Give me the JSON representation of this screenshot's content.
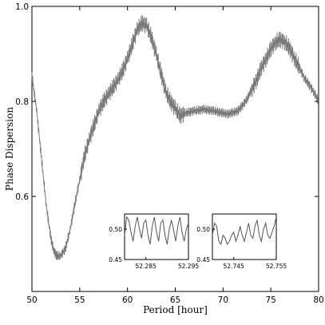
{
  "chart_data": {
    "type": "line",
    "xlabel": "Period [hour]",
    "ylabel": "Phase Dispersion",
    "xlim": [
      50,
      80
    ],
    "ylim": [
      0.4,
      1.0
    ],
    "x_ticks": [
      "50",
      "55",
      "60",
      "65",
      "70",
      "75",
      "80"
    ],
    "y_ticks": [
      "0.6",
      "0.8",
      "1.0"
    ],
    "grid": false,
    "line_color": "#7a7a7a",
    "series": [
      {
        "x": [
          50,
          50.5,
          51,
          51.5,
          52,
          52.3,
          52.6,
          53,
          53.5,
          54,
          54.5,
          55,
          55.5,
          56,
          56.5,
          57,
          57.5,
          58,
          58.5,
          59,
          59.5,
          60,
          60.5,
          61,
          61.5,
          62,
          62.5,
          63,
          63.5,
          64,
          64.5,
          65,
          65.5,
          66,
          66.5,
          67,
          67.5,
          68,
          68.5,
          69,
          69.5,
          70,
          70.5,
          71,
          71.5,
          72,
          72.5,
          73,
          73.5,
          74,
          74.5,
          75,
          75.5,
          76,
          76.5,
          77,
          77.5,
          78,
          78.5,
          79,
          79.5,
          80
        ],
        "values": [
          0.855,
          0.78,
          0.68,
          0.58,
          0.51,
          0.485,
          0.475,
          0.475,
          0.49,
          0.53,
          0.585,
          0.635,
          0.685,
          0.72,
          0.75,
          0.78,
          0.8,
          0.815,
          0.83,
          0.845,
          0.865,
          0.89,
          0.92,
          0.95,
          0.965,
          0.96,
          0.935,
          0.9,
          0.86,
          0.82,
          0.8,
          0.785,
          0.77,
          0.775,
          0.778,
          0.78,
          0.782,
          0.783,
          0.782,
          0.78,
          0.778,
          0.775,
          0.774,
          0.776,
          0.78,
          0.79,
          0.805,
          0.825,
          0.845,
          0.87,
          0.89,
          0.91,
          0.925,
          0.93,
          0.925,
          0.91,
          0.89,
          0.87,
          0.85,
          0.835,
          0.82,
          0.8
        ]
      }
    ],
    "insets": [
      {
        "xlim": [
          52.28,
          52.295
        ],
        "ylim": [
          0.45,
          0.525
        ],
        "x_ticks": [
          "52.285",
          "52.295"
        ],
        "y_ticks": [
          "0.45",
          "0.50"
        ],
        "x": [
          52.28,
          52.2805,
          52.281,
          52.2815,
          52.282,
          52.2825,
          52.283,
          52.2835,
          52.284,
          52.2845,
          52.285,
          52.2855,
          52.286,
          52.2865,
          52.287,
          52.2875,
          52.288,
          52.2885,
          52.289,
          52.2895,
          52.29,
          52.2905,
          52.291,
          52.2915,
          52.292,
          52.2925,
          52.293,
          52.2935,
          52.294,
          52.2945,
          52.295
        ],
        "values": [
          0.49,
          0.52,
          0.515,
          0.495,
          0.48,
          0.505,
          0.52,
          0.5,
          0.485,
          0.51,
          0.515,
          0.49,
          0.475,
          0.505,
          0.52,
          0.495,
          0.48,
          0.51,
          0.515,
          0.49,
          0.475,
          0.5,
          0.515,
          0.5,
          0.48,
          0.505,
          0.52,
          0.495,
          0.48,
          0.5,
          0.51
        ]
      },
      {
        "xlim": [
          52.74,
          52.755
        ],
        "ylim": [
          0.45,
          0.525
        ],
        "x_ticks": [
          "52.745",
          "52.755"
        ],
        "y_ticks": [
          "0.45",
          "0.50"
        ],
        "x": [
          52.74,
          52.7405,
          52.741,
          52.7415,
          52.742,
          52.7425,
          52.743,
          52.7435,
          52.744,
          52.7445,
          52.745,
          52.7455,
          52.746,
          52.7465,
          52.747,
          52.7475,
          52.748,
          52.7485,
          52.749,
          52.7495,
          52.75,
          52.7505,
          52.751,
          52.7515,
          52.752,
          52.7525,
          52.753,
          52.7535,
          52.754,
          52.7545,
          52.755
        ],
        "values": [
          0.49,
          0.51,
          0.505,
          0.48,
          0.475,
          0.49,
          0.485,
          0.475,
          0.48,
          0.49,
          0.495,
          0.48,
          0.49,
          0.505,
          0.49,
          0.48,
          0.495,
          0.51,
          0.49,
          0.485,
          0.505,
          0.515,
          0.49,
          0.48,
          0.5,
          0.51,
          0.49,
          0.485,
          0.495,
          0.505,
          0.52
        ]
      }
    ]
  }
}
